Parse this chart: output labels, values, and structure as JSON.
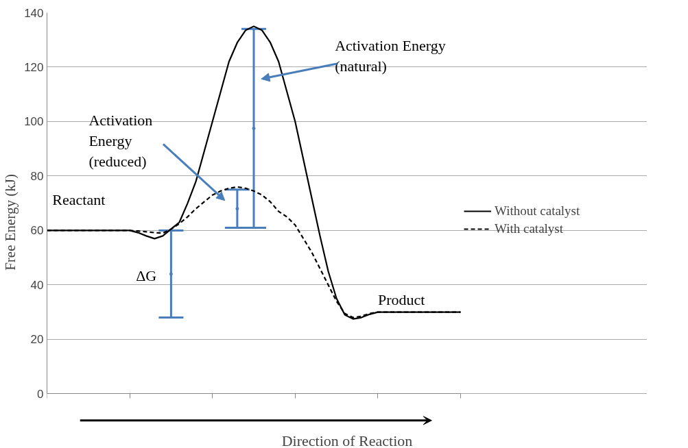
{
  "chart_data": {
    "type": "line",
    "xlabel": "Direction of Reaction",
    "ylabel": "Free Energy (kJ)",
    "categories": [
      null,
      null,
      null,
      null,
      null,
      null,
      null,
      null,
      null,
      null,
      null,
      null,
      null,
      null,
      null,
      null,
      null,
      null,
      null,
      null,
      null,
      null,
      null,
      null,
      null,
      null,
      null,
      null,
      null,
      null,
      null,
      null,
      null,
      null,
      null,
      null,
      null,
      null,
      null,
      null,
      null,
      null,
      null,
      null,
      null,
      null,
      null,
      null,
      null,
      null,
      null
    ],
    "ylim": [
      0,
      140
    ],
    "yticks": [
      0,
      20,
      40,
      60,
      80,
      100,
      120,
      140
    ],
    "grid": "y",
    "legend": "right",
    "series": [
      {
        "name": "Without catalyst",
        "line_style": "solid",
        "color": "#000000",
        "values": [
          60,
          60,
          60,
          60,
          60,
          60,
          60,
          60,
          60,
          60,
          60,
          59.2,
          58,
          57,
          58,
          60.5,
          63,
          70,
          78,
          89,
          100,
          111,
          122,
          129,
          133.5,
          135,
          133.5,
          129,
          122,
          111,
          100,
          86,
          72,
          58,
          45,
          35,
          29,
          27.5,
          28,
          29.2,
          30,
          30,
          30,
          30,
          30,
          30,
          30,
          30,
          30,
          30,
          30
        ]
      },
      {
        "name": "With catalyst",
        "line_style": "dashed",
        "color": "#000000",
        "values": [
          60,
          60,
          60,
          60,
          60,
          60,
          60,
          60,
          60,
          60,
          60,
          59.8,
          59.5,
          59.2,
          59,
          60.5,
          62.5,
          65,
          68,
          70.5,
          73,
          74.5,
          75.5,
          76,
          75.5,
          74.5,
          73,
          70.5,
          67,
          65,
          62,
          57,
          52,
          46,
          40,
          34,
          29.5,
          28,
          28.5,
          29.5,
          30,
          30,
          30,
          30,
          30,
          30,
          30,
          30,
          30,
          30,
          30
        ]
      },
      {
        "type": "scatter",
        "marker": "circle",
        "color": "#4a7ebb",
        "values": [
          null,
          null,
          null,
          null,
          null,
          null,
          null,
          null,
          null,
          null,
          null,
          null,
          null,
          null,
          null,
          44,
          null,
          null,
          null,
          null,
          null,
          null,
          null,
          68,
          null,
          97.5,
          null,
          null,
          null,
          null,
          null,
          null,
          null,
          null,
          null,
          null,
          null,
          null,
          null,
          null,
          null,
          null,
          null,
          null,
          null,
          null,
          null,
          null,
          null,
          null,
          null
        ],
        "errors": [
          null,
          null,
          null,
          null,
          null,
          null,
          null,
          null,
          null,
          null,
          null,
          null,
          null,
          null,
          null,
          16,
          null,
          null,
          null,
          null,
          null,
          null,
          null,
          7,
          null,
          36.5,
          null,
          null,
          null,
          null,
          null,
          null,
          null,
          null,
          null,
          null,
          null,
          null,
          null,
          null,
          null,
          null,
          null,
          null,
          null,
          null,
          null,
          null,
          null,
          null,
          null
        ]
      }
    ],
    "annotations": [
      "Reactant",
      "Product",
      "ΔG",
      "Activation Energy\n(natural)",
      "Activation\nEnergy\n(reduced)"
    ]
  }
}
